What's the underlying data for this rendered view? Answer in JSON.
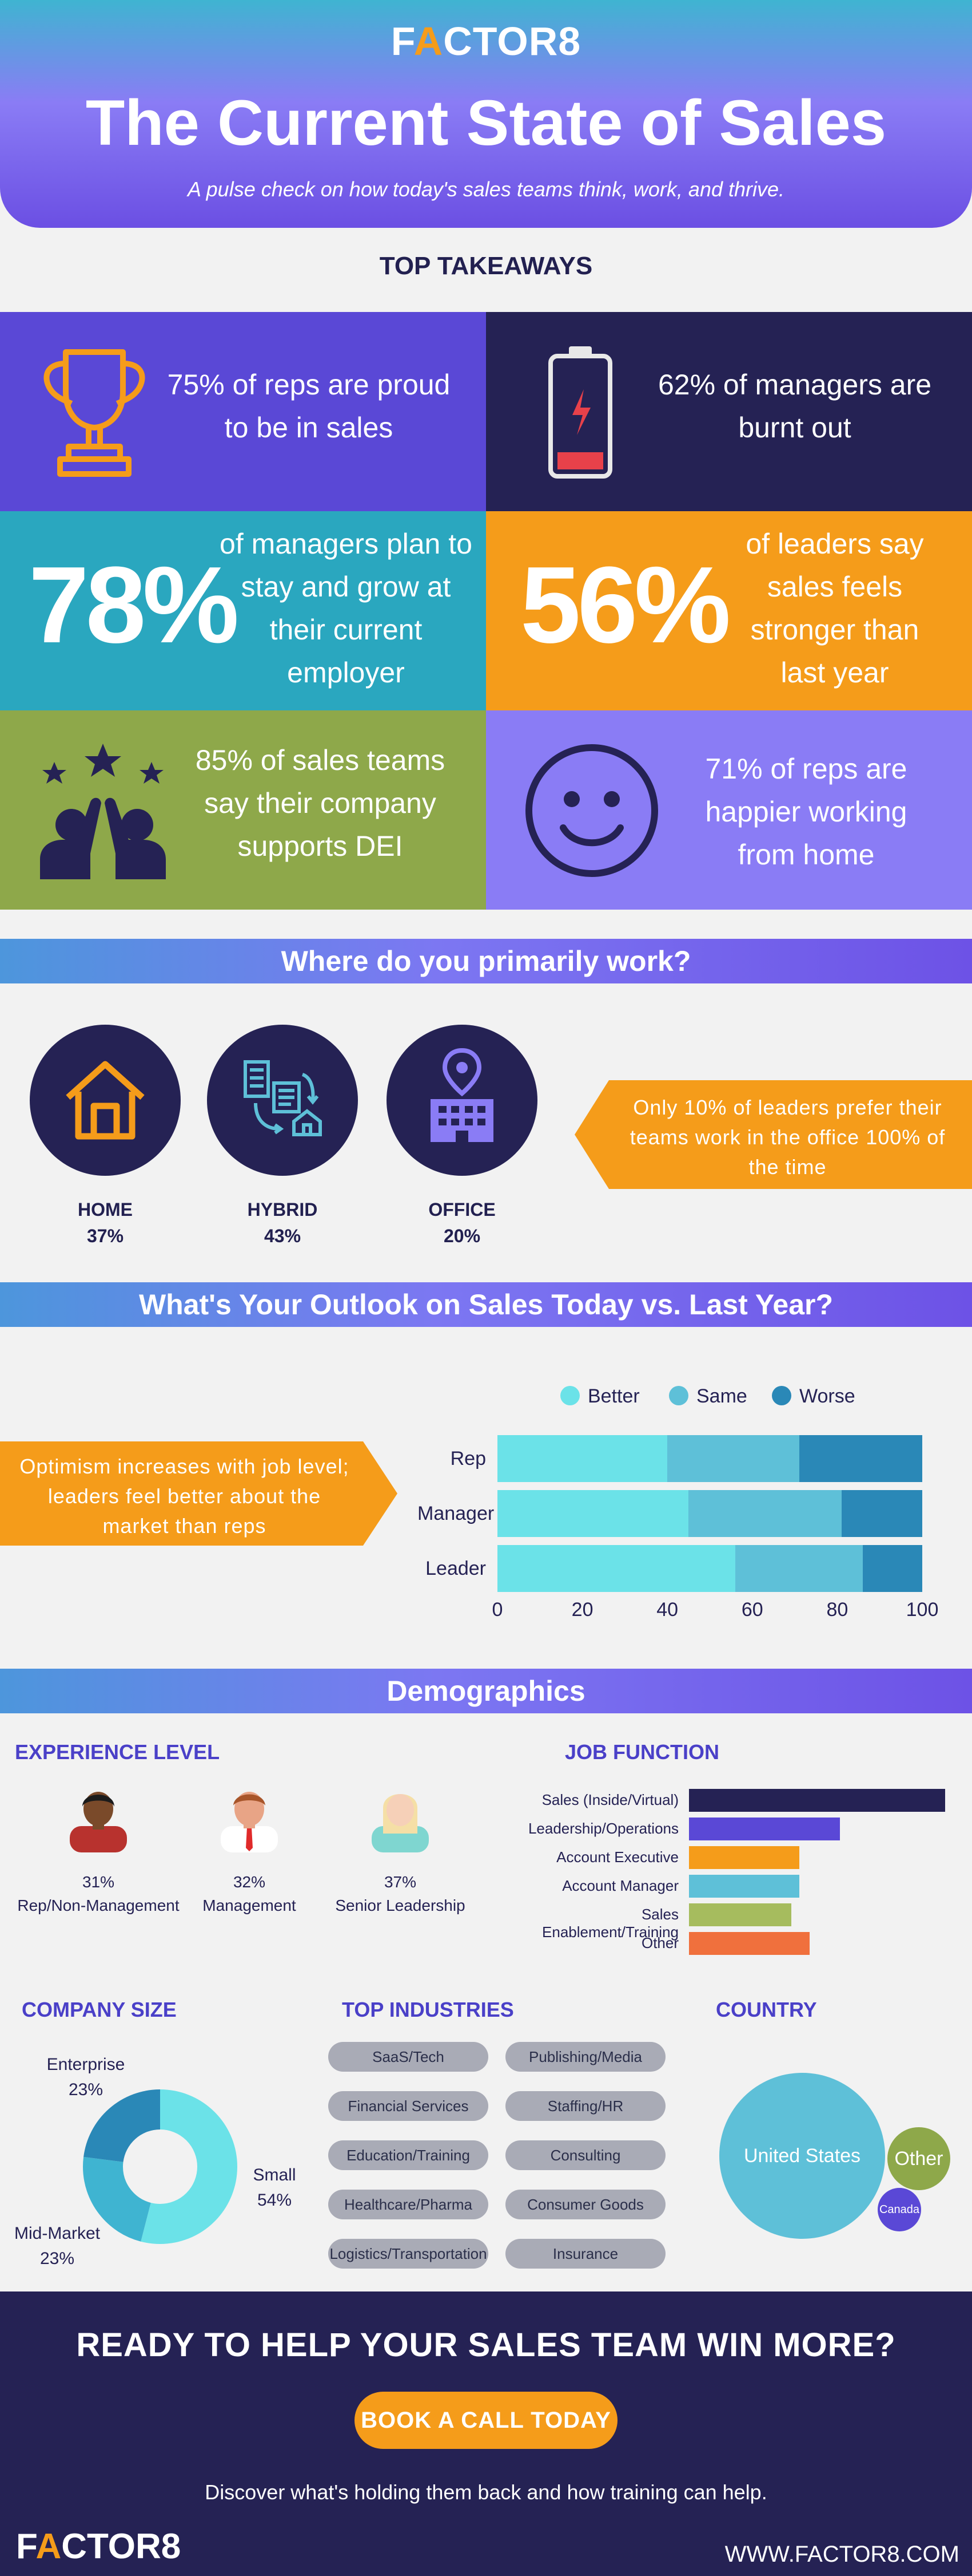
{
  "header": {
    "logo": "FACTOR8",
    "logo_prefix": "F",
    "logo_accent": "A",
    "logo_suffix": "CTOR8",
    "title": "The Current State of Sales",
    "subtitle": "A pulse check on how today's sales teams think, work, and thrive."
  },
  "takeaways": {
    "heading": "TOP TAKEAWAYS",
    "items": [
      {
        "text": "75% of reps are proud to be in sales",
        "icon": "trophy-icon",
        "color": "#5a48d6"
      },
      {
        "text": "62% of managers are burnt out",
        "icon": "battery-low-icon",
        "color": "#252254"
      },
      {
        "big": "78%",
        "text": "of managers plan to stay and grow at their current employer",
        "color": "#2aa7bf"
      },
      {
        "big": "56%",
        "text": "of leaders say sales feels stronger than last year",
        "color": "#f59c1a"
      },
      {
        "text": "85% of sales teams say their company supports DEI",
        "icon": "high-five-icon",
        "color": "#8ea84a"
      },
      {
        "text": "71% of reps are happier working from home",
        "icon": "smiley-icon",
        "color": "#8a7cf5"
      }
    ]
  },
  "work_location": {
    "heading": "Where do you primarily work?",
    "options": [
      {
        "label": "HOME",
        "pct": "37%",
        "icon": "house-icon"
      },
      {
        "label": "HYBRID",
        "pct": "43%",
        "icon": "hybrid-icon"
      },
      {
        "label": "OFFICE",
        "pct": "20%",
        "icon": "office-building-icon"
      }
    ],
    "callout": "Only 10% of leaders prefer their teams work in the office 100% of the time"
  },
  "outlook": {
    "heading": "What's Your Outlook on Sales Today vs. Last Year?",
    "callout": "Optimism increases with job level; leaders feel better about the market than reps"
  },
  "chart_data": {
    "type": "bar",
    "orientation": "horizontal",
    "stacked": true,
    "categories": [
      "Rep",
      "Manager",
      "Leader"
    ],
    "series": [
      {
        "name": "Better",
        "values": [
          40,
          45,
          56
        ],
        "color": "#6be2e8"
      },
      {
        "name": "Same",
        "values": [
          31,
          36,
          30
        ],
        "color": "#5ec0d8"
      },
      {
        "name": "Worse",
        "values": [
          29,
          19,
          14
        ],
        "color": "#2a88b7"
      }
    ],
    "xlim": [
      0,
      100
    ],
    "xticks": [
      "0",
      "20",
      "40",
      "60",
      "80",
      "100"
    ],
    "legend": "top",
    "grid": false
  },
  "demographics": {
    "heading": "Demographics",
    "experience": {
      "heading": "EXPERIENCE LEVEL",
      "items": [
        {
          "pct": "31%",
          "label": "Rep/Non-Management"
        },
        {
          "pct": "32%",
          "label": "Management"
        },
        {
          "pct": "37%",
          "label": "Senior Leadership"
        }
      ]
    },
    "job_function": {
      "heading": "JOB FUNCTION",
      "items": [
        {
          "label": "Sales (Inside/Virtual)",
          "value": 100,
          "color": "#252254"
        },
        {
          "label": "Leadership/Operations",
          "value": 59,
          "color": "#5a48d6"
        },
        {
          "label": "Account Executive",
          "value": 43,
          "color": "#f59c1a"
        },
        {
          "label": "Account Manager",
          "value": 43,
          "color": "#5ec0d8"
        },
        {
          "label": "Sales Enablement/Training",
          "value": 40,
          "color": "#a6bc5e"
        },
        {
          "label": "Other",
          "value": 47,
          "color": "#f0703d"
        }
      ]
    },
    "company_size": {
      "heading": "COMPANY SIZE",
      "items": [
        {
          "label": "Enterprise",
          "pct": "23%",
          "value": 23,
          "color": "#2a88b7"
        },
        {
          "label": "Small",
          "pct": "54%",
          "value": 54,
          "color": "#6be2e8"
        },
        {
          "label": "Mid-Market",
          "pct": "23%",
          "value": 23,
          "color": "#3fb4d1"
        }
      ]
    },
    "industries": {
      "heading": "TOP INDUSTRIES",
      "items": [
        "SaaS/Tech",
        "Publishing/Media",
        "Financial Services",
        "Staffing/HR",
        "Education/Training",
        "Consulting",
        "Healthcare/Pharma",
        "Consumer Goods",
        "Logistics/Transportation",
        "Insurance"
      ]
    },
    "country": {
      "heading": "COUNTRY",
      "items": [
        {
          "label": "United States",
          "color": "#5ec0d8"
        },
        {
          "label": "Other",
          "color": "#8ea84a"
        },
        {
          "label": "Canada",
          "color": "#5a48d6"
        }
      ]
    }
  },
  "footer": {
    "heading": "READY TO HELP YOUR SALES TEAM WIN MORE?",
    "button": "BOOK A CALL TODAY",
    "subtext": "Discover what's holding them back and how training can help.",
    "logo_prefix": "F",
    "logo_accent": "A",
    "logo_suffix": "CTOR8",
    "url": "WWW.FACTOR8.COM"
  }
}
